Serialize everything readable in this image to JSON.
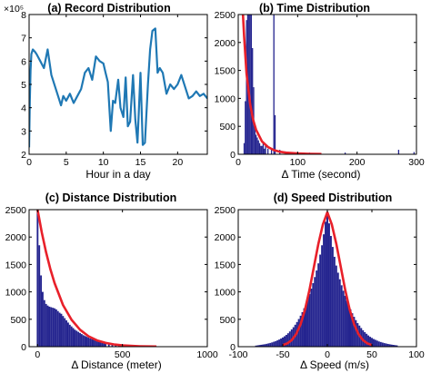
{
  "colors": {
    "blue": "#1f78b4",
    "navy": "#24248f",
    "red": "#e8202a"
  },
  "chart_data": [
    {
      "type": "line",
      "title": "(a) Record Distribution",
      "xlabel": "Hour in a day",
      "ylabel": "",
      "exponent_label": "×10⁵",
      "xlim": [
        0,
        24
      ],
      "ylim": [
        2,
        8
      ],
      "xticks": [
        0,
        5,
        10,
        15,
        20
      ],
      "yticks": [
        2,
        3,
        4,
        5,
        6,
        7,
        8
      ],
      "x": [
        0,
        0.1,
        0.2,
        0.3,
        0.5,
        0.8,
        1,
        1.5,
        2,
        2.5,
        3,
        3.5,
        4,
        4.3,
        4.6,
        5,
        5.5,
        6,
        6.5,
        7,
        7.5,
        8,
        8.5,
        9,
        9.5,
        10,
        10.3,
        10.6,
        11,
        11.3,
        11.6,
        12,
        12.3,
        12.7,
        13,
        13.3,
        13.6,
        14,
        14.3,
        14.6,
        15,
        15.3,
        15.6,
        16,
        16.3,
        16.6,
        17,
        17.3,
        17.6,
        18,
        18.5,
        19,
        19.5,
        20,
        20.5,
        21,
        21.5,
        22,
        22.5,
        23,
        23.5,
        24
      ],
      "y": [
        2.3,
        4.3,
        5.6,
        6.3,
        6.5,
        6.4,
        6.3,
        6.0,
        5.7,
        6.5,
        5.4,
        4.9,
        4.4,
        4.1,
        4.5,
        4.3,
        4.6,
        4.2,
        4.5,
        4.8,
        5.5,
        5.7,
        5.2,
        6.2,
        6.0,
        5.9,
        5.5,
        5.1,
        3.0,
        4.3,
        4.2,
        5.2,
        4.0,
        3.6,
        5.3,
        3.2,
        3.4,
        5.4,
        3.5,
        2.5,
        5.5,
        2.4,
        2.5,
        5.0,
        6.5,
        7.3,
        7.4,
        5.5,
        5.7,
        5.5,
        4.6,
        5.0,
        4.8,
        5.0,
        5.4,
        4.9,
        4.4,
        4.5,
        4.7,
        4.5,
        4.6,
        4.4
      ],
      "color": "blue"
    },
    {
      "type": "bar",
      "title": "(b) Time Distribution",
      "xlabel": "Δ Time (second)",
      "ylabel": "",
      "xlim": [
        0,
        300
      ],
      "ylim": [
        0,
        2500
      ],
      "xticks": [
        0,
        100,
        200,
        300
      ],
      "yticks": [
        0,
        500,
        1000,
        1500,
        2000,
        2500
      ],
      "bin_width": 2,
      "bins": [
        {
          "x": 10,
          "v": 200
        },
        {
          "x": 12,
          "v": 950
        },
        {
          "x": 14,
          "v": 2400
        },
        {
          "x": 16,
          "v": 2500
        },
        {
          "x": 18,
          "v": 2500
        },
        {
          "x": 20,
          "v": 2500
        },
        {
          "x": 22,
          "v": 2500
        },
        {
          "x": 24,
          "v": 1900
        },
        {
          "x": 26,
          "v": 1200
        },
        {
          "x": 28,
          "v": 500
        },
        {
          "x": 30,
          "v": 350
        },
        {
          "x": 32,
          "v": 300
        },
        {
          "x": 34,
          "v": 250
        },
        {
          "x": 36,
          "v": 200
        },
        {
          "x": 38,
          "v": 150
        },
        {
          "x": 40,
          "v": 150
        },
        {
          "x": 42,
          "v": 200
        },
        {
          "x": 44,
          "v": 100
        },
        {
          "x": 46,
          "v": 150
        },
        {
          "x": 50,
          "v": 100
        },
        {
          "x": 56,
          "v": 100
        },
        {
          "x": 60,
          "v": 2500
        },
        {
          "x": 62,
          "v": 700
        },
        {
          "x": 70,
          "v": 80
        },
        {
          "x": 80,
          "v": 50
        },
        {
          "x": 90,
          "v": 30
        },
        {
          "x": 120,
          "v": 30
        },
        {
          "x": 180,
          "v": 30
        },
        {
          "x": 270,
          "v": 80
        },
        {
          "x": 296,
          "v": 40
        }
      ],
      "curve": {
        "x": [
          8,
          10,
          14,
          20,
          25,
          30,
          40,
          50,
          60,
          70,
          80,
          100,
          120,
          140
        ],
        "y": [
          2500,
          2100,
          1450,
          900,
          620,
          440,
          230,
          130,
          75,
          45,
          30,
          15,
          8,
          5
        ]
      },
      "bar_color": "navy",
      "curve_color": "red"
    },
    {
      "type": "bar",
      "title": "(c) Distance Distribution",
      "xlabel": "Δ Distance (meter)",
      "ylabel": "",
      "xlim": [
        -50,
        1000
      ],
      "ylim": [
        0,
        2500
      ],
      "xticks": [
        0,
        500,
        1000
      ],
      "yticks": [
        0,
        500,
        1000,
        1500,
        2000,
        2500
      ],
      "bin_width": 10,
      "bins": [
        {
          "x": 0,
          "v": 2500
        },
        {
          "x": 10,
          "v": 1850
        },
        {
          "x": 20,
          "v": 1300
        },
        {
          "x": 30,
          "v": 1000
        },
        {
          "x": 40,
          "v": 850
        },
        {
          "x": 50,
          "v": 780
        },
        {
          "x": 60,
          "v": 750
        },
        {
          "x": 70,
          "v": 730
        },
        {
          "x": 80,
          "v": 720
        },
        {
          "x": 90,
          "v": 710
        },
        {
          "x": 100,
          "v": 700
        },
        {
          "x": 110,
          "v": 680
        },
        {
          "x": 120,
          "v": 650
        },
        {
          "x": 130,
          "v": 620
        },
        {
          "x": 140,
          "v": 600
        },
        {
          "x": 150,
          "v": 560
        },
        {
          "x": 160,
          "v": 520
        },
        {
          "x": 170,
          "v": 480
        },
        {
          "x": 180,
          "v": 440
        },
        {
          "x": 190,
          "v": 400
        },
        {
          "x": 200,
          "v": 370
        },
        {
          "x": 210,
          "v": 340
        },
        {
          "x": 220,
          "v": 310
        },
        {
          "x": 230,
          "v": 290
        },
        {
          "x": 240,
          "v": 270
        },
        {
          "x": 250,
          "v": 250
        },
        {
          "x": 260,
          "v": 230
        },
        {
          "x": 270,
          "v": 210
        },
        {
          "x": 280,
          "v": 195
        },
        {
          "x": 290,
          "v": 180
        },
        {
          "x": 300,
          "v": 165
        },
        {
          "x": 310,
          "v": 150
        },
        {
          "x": 320,
          "v": 140
        },
        {
          "x": 330,
          "v": 130
        },
        {
          "x": 340,
          "v": 120
        },
        {
          "x": 350,
          "v": 110
        },
        {
          "x": 360,
          "v": 100
        },
        {
          "x": 370,
          "v": 95
        },
        {
          "x": 380,
          "v": 88
        },
        {
          "x": 390,
          "v": 82
        },
        {
          "x": 400,
          "v": 76
        },
        {
          "x": 420,
          "v": 66
        },
        {
          "x": 440,
          "v": 58
        },
        {
          "x": 460,
          "v": 50
        },
        {
          "x": 480,
          "v": 44
        },
        {
          "x": 500,
          "v": 38
        },
        {
          "x": 520,
          "v": 33
        },
        {
          "x": 540,
          "v": 29
        },
        {
          "x": 560,
          "v": 25
        },
        {
          "x": 580,
          "v": 22
        },
        {
          "x": 600,
          "v": 19
        },
        {
          "x": 620,
          "v": 16
        },
        {
          "x": 640,
          "v": 14
        },
        {
          "x": 660,
          "v": 12
        },
        {
          "x": 680,
          "v": 10
        },
        {
          "x": 700,
          "v": 9
        },
        {
          "x": 750,
          "v": 7
        },
        {
          "x": 800,
          "v": 5
        },
        {
          "x": 850,
          "v": 4
        },
        {
          "x": 900,
          "v": 3
        },
        {
          "x": 950,
          "v": 2
        }
      ],
      "curve": {
        "x": [
          0,
          25,
          50,
          75,
          100,
          150,
          200,
          250,
          300,
          350,
          400,
          450,
          500,
          550,
          600,
          650,
          700
        ],
        "y": [
          2500,
          2080,
          1720,
          1420,
          1160,
          760,
          490,
          310,
          190,
          115,
          70,
          42,
          25,
          15,
          9,
          5,
          3
        ]
      },
      "bar_color": "navy",
      "curve_color": "red"
    },
    {
      "type": "bar",
      "title": "(d) Speed Distribution",
      "xlabel": "Δ Speed (m/s)",
      "ylabel": "",
      "xlim": [
        -100,
        100
      ],
      "ylim": [
        0,
        2500
      ],
      "xticks": [
        -100,
        -50,
        0,
        50,
        100
      ],
      "yticks": [
        0,
        500,
        1000,
        1500,
        2000,
        2500
      ],
      "bin_width": 2,
      "bins": [
        {
          "x": -80,
          "v": 20
        },
        {
          "x": -78,
          "v": 25
        },
        {
          "x": -76,
          "v": 30
        },
        {
          "x": -74,
          "v": 35
        },
        {
          "x": -72,
          "v": 40
        },
        {
          "x": -70,
          "v": 45
        },
        {
          "x": -68,
          "v": 52
        },
        {
          "x": -66,
          "v": 60
        },
        {
          "x": -64,
          "v": 68
        },
        {
          "x": -62,
          "v": 78
        },
        {
          "x": -60,
          "v": 90
        },
        {
          "x": -58,
          "v": 100
        },
        {
          "x": -56,
          "v": 115
        },
        {
          "x": -54,
          "v": 130
        },
        {
          "x": -52,
          "v": 148
        },
        {
          "x": -50,
          "v": 168
        },
        {
          "x": -48,
          "v": 190
        },
        {
          "x": -46,
          "v": 215
        },
        {
          "x": -44,
          "v": 245
        },
        {
          "x": -42,
          "v": 278
        },
        {
          "x": -40,
          "v": 315
        },
        {
          "x": -38,
          "v": 355
        },
        {
          "x": -36,
          "v": 400
        },
        {
          "x": -34,
          "v": 450
        },
        {
          "x": -32,
          "v": 505
        },
        {
          "x": -30,
          "v": 565
        },
        {
          "x": -28,
          "v": 630
        },
        {
          "x": -26,
          "v": 700
        },
        {
          "x": -24,
          "v": 780
        },
        {
          "x": -22,
          "v": 870
        },
        {
          "x": -20,
          "v": 960
        },
        {
          "x": -18,
          "v": 1060
        },
        {
          "x": -16,
          "v": 1160
        },
        {
          "x": -14,
          "v": 1270
        },
        {
          "x": -12,
          "v": 1390
        },
        {
          "x": -10,
          "v": 1520
        },
        {
          "x": -8,
          "v": 1680
        },
        {
          "x": -6,
          "v": 1850
        },
        {
          "x": -4,
          "v": 2050
        },
        {
          "x": -2,
          "v": 2280
        },
        {
          "x": 0,
          "v": 2450
        },
        {
          "x": 2,
          "v": 2250
        },
        {
          "x": 4,
          "v": 2020
        },
        {
          "x": 6,
          "v": 1820
        },
        {
          "x": 8,
          "v": 1640
        },
        {
          "x": 10,
          "v": 1480
        },
        {
          "x": 12,
          "v": 1350
        },
        {
          "x": 14,
          "v": 1230
        },
        {
          "x": 16,
          "v": 1120
        },
        {
          "x": 18,
          "v": 1020
        },
        {
          "x": 20,
          "v": 930
        },
        {
          "x": 22,
          "v": 840
        },
        {
          "x": 24,
          "v": 760
        },
        {
          "x": 26,
          "v": 680
        },
        {
          "x": 28,
          "v": 610
        },
        {
          "x": 30,
          "v": 545
        },
        {
          "x": 32,
          "v": 485
        },
        {
          "x": 34,
          "v": 430
        },
        {
          "x": 36,
          "v": 385
        },
        {
          "x": 38,
          "v": 340
        },
        {
          "x": 40,
          "v": 300
        },
        {
          "x": 42,
          "v": 265
        },
        {
          "x": 44,
          "v": 235
        },
        {
          "x": 46,
          "v": 205
        },
        {
          "x": 48,
          "v": 180
        },
        {
          "x": 50,
          "v": 160
        },
        {
          "x": 52,
          "v": 140
        },
        {
          "x": 54,
          "v": 125
        },
        {
          "x": 56,
          "v": 110
        },
        {
          "x": 58,
          "v": 95
        },
        {
          "x": 60,
          "v": 85
        },
        {
          "x": 62,
          "v": 75
        },
        {
          "x": 64,
          "v": 65
        },
        {
          "x": 66,
          "v": 58
        },
        {
          "x": 68,
          "v": 50
        },
        {
          "x": 70,
          "v": 44
        },
        {
          "x": 72,
          "v": 38
        },
        {
          "x": 74,
          "v": 33
        },
        {
          "x": 76,
          "v": 28
        },
        {
          "x": 78,
          "v": 24
        }
      ],
      "curve": {
        "x": [
          -50,
          -45,
          -40,
          -35,
          -30,
          -25,
          -20,
          -15,
          -10,
          -5,
          0,
          5,
          10,
          15,
          20,
          25,
          30,
          35,
          40,
          45,
          50
        ],
        "y": [
          30,
          60,
          120,
          230,
          410,
          680,
          1040,
          1460,
          1880,
          2230,
          2450,
          2230,
          1880,
          1460,
          1040,
          680,
          410,
          230,
          120,
          60,
          30
        ]
      },
      "bar_color": "navy",
      "curve_color": "red"
    }
  ]
}
